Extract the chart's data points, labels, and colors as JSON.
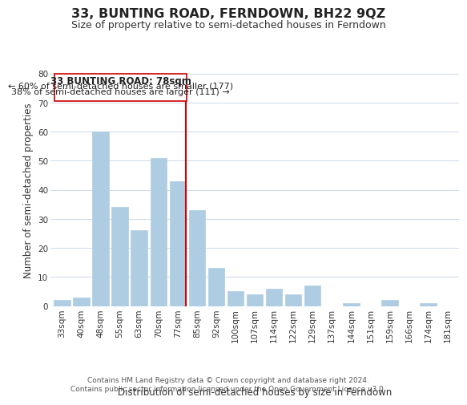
{
  "title": "33, BUNTING ROAD, FERNDOWN, BH22 9QZ",
  "subtitle": "Size of property relative to semi-detached houses in Ferndown",
  "xlabel": "Distribution of semi-detached houses by size in Ferndown",
  "ylabel": "Number of semi-detached properties",
  "footer1": "Contains HM Land Registry data © Crown copyright and database right 2024.",
  "footer2": "Contains public sector information licensed under the Open Government Licence v3.0.",
  "bar_labels": [
    "33sqm",
    "40sqm",
    "48sqm",
    "55sqm",
    "63sqm",
    "70sqm",
    "77sqm",
    "85sqm",
    "92sqm",
    "100sqm",
    "107sqm",
    "114sqm",
    "122sqm",
    "129sqm",
    "137sqm",
    "144sqm",
    "151sqm",
    "159sqm",
    "166sqm",
    "174sqm",
    "181sqm"
  ],
  "bar_values": [
    2,
    3,
    60,
    34,
    26,
    51,
    43,
    33,
    13,
    5,
    4,
    6,
    4,
    7,
    0,
    1,
    0,
    2,
    0,
    1,
    0
  ],
  "bar_color": "#aecde3",
  "vline_index": 6,
  "vline_color": "#cc0000",
  "annotation_title": "33 BUNTING ROAD: 78sqm",
  "annotation_line1": "← 60% of semi-detached houses are smaller (177)",
  "annotation_line2": "38% of semi-detached houses are larger (111) →",
  "annotation_box_color": "#ffffff",
  "annotation_box_edge": "#cc0000",
  "ylim": [
    0,
    80
  ],
  "yticks": [
    0,
    10,
    20,
    30,
    40,
    50,
    60,
    70,
    80
  ],
  "background_color": "#ffffff",
  "grid_color": "#ccd9e8",
  "title_fontsize": 11.5,
  "subtitle_fontsize": 9,
  "axis_label_fontsize": 8.5,
  "tick_fontsize": 7.5,
  "annotation_title_fontsize": 8.5,
  "annotation_text_fontsize": 8,
  "footer_fontsize": 6.5
}
